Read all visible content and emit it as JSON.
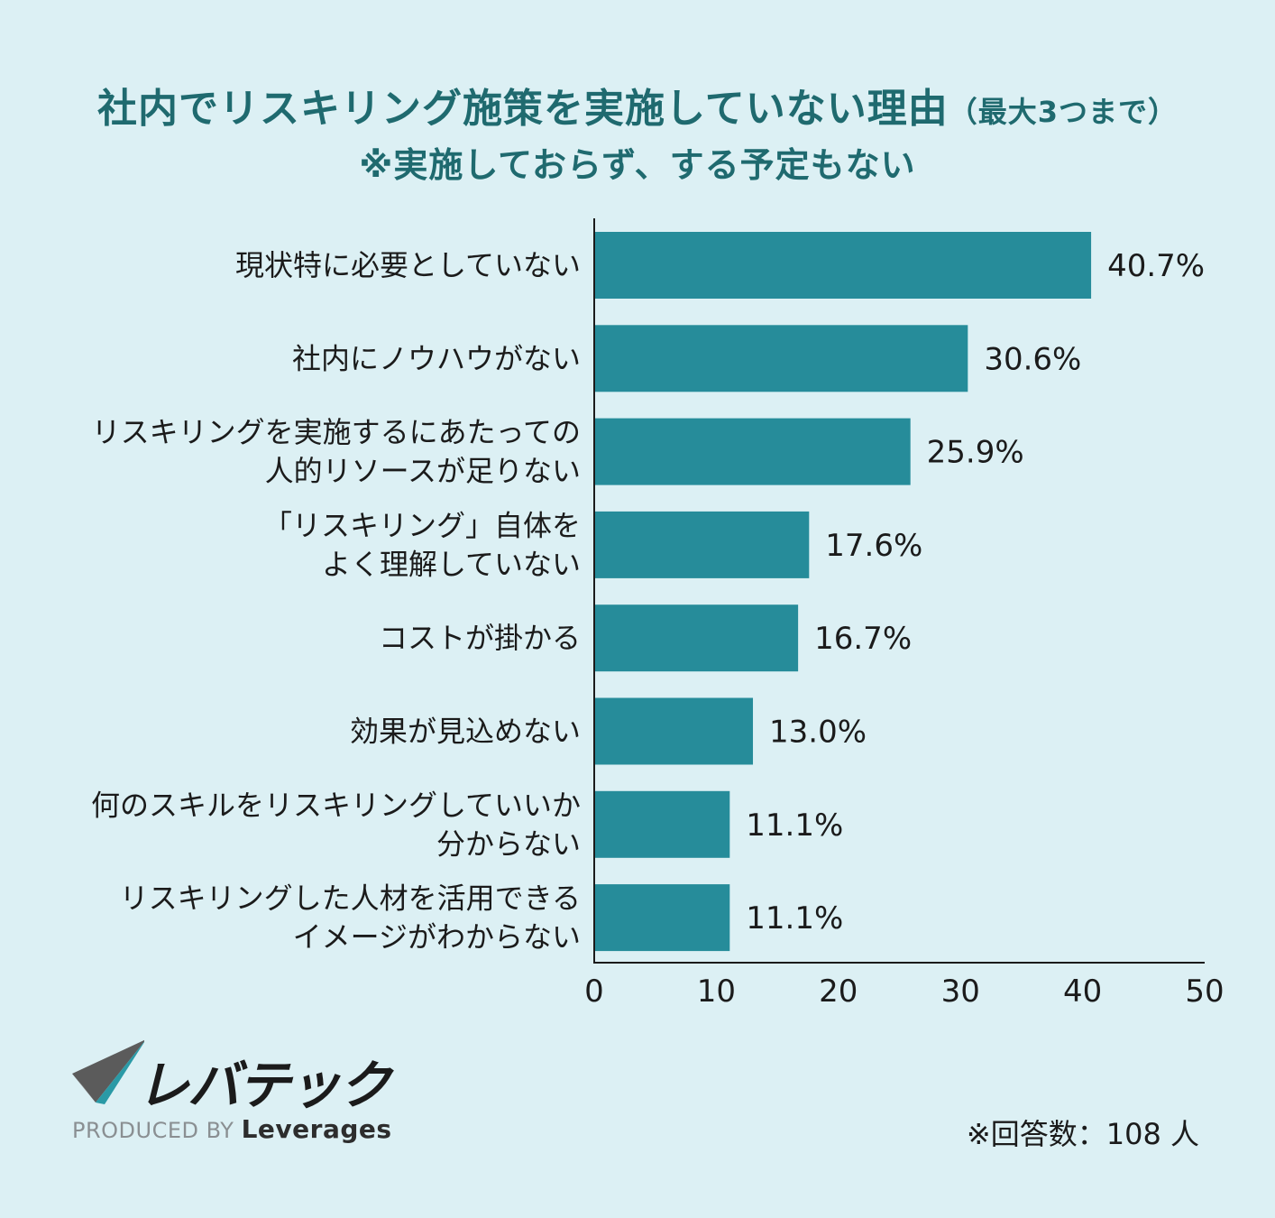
{
  "title": {
    "main": "社内でリスキリング施策を実施していない理由",
    "main_suffix": "（最大3つまで）",
    "sub": "※実施しておらず、する予定もない"
  },
  "chart_data": {
    "type": "bar",
    "orientation": "horizontal",
    "categories": [
      [
        "現状特に必要としていない"
      ],
      [
        "社内にノウハウがない"
      ],
      [
        "リスキリングを実施するにあたっての",
        "人的リソースが足りない"
      ],
      [
        "「リスキリング」自体を",
        "よく理解していない"
      ],
      [
        "コストが掛かる"
      ],
      [
        "効果が見込めない"
      ],
      [
        "何のスキルをリスキリングしていいか",
        "分からない"
      ],
      [
        "リスキリングした人材を活用できる",
        "イメージがわからない"
      ]
    ],
    "values": [
      40.7,
      30.6,
      25.9,
      17.6,
      16.7,
      13.0,
      11.1,
      11.1
    ],
    "value_labels": [
      "40.7%",
      "30.6%",
      "25.9%",
      "17.6%",
      "16.7%",
      "13.0%",
      "11.1%",
      "11.1%"
    ],
    "xlim": [
      0,
      50
    ],
    "xticks": [
      "0",
      "10",
      "20",
      "30",
      "40",
      "50"
    ],
    "grid": false,
    "bar_color": "#268c9a"
  },
  "logo": {
    "wordmark": "レバテック",
    "produced_by": "PRODUCED BY",
    "brand": "Leverages"
  },
  "footnote": "※回答数：108 人",
  "colors": {
    "background": "#dcf0f4",
    "title": "#1f6a6f",
    "bar": "#268c9a",
    "text": "#1b1b1b"
  }
}
